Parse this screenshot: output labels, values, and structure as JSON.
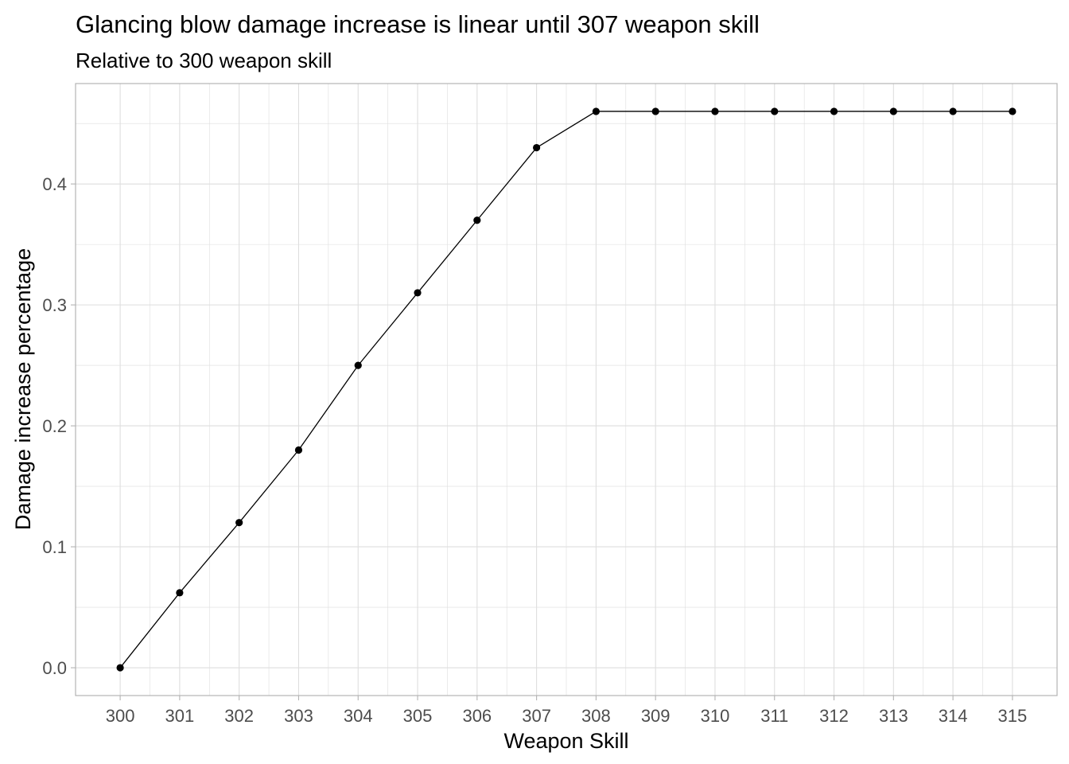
{
  "chart_data": {
    "type": "line",
    "title": "Glancing blow damage increase is linear until 307 weapon skill",
    "subtitle": "Relative to 300 weapon skill",
    "xlabel": "Weapon Skill",
    "ylabel": "Damage increase percentage",
    "x": [
      300,
      301,
      302,
      303,
      304,
      305,
      306,
      307,
      308,
      309,
      310,
      311,
      312,
      313,
      314,
      315
    ],
    "series": [
      {
        "name": "Damage increase",
        "values": [
          0.0,
          0.062,
          0.12,
          0.18,
          0.25,
          0.31,
          0.37,
          0.43,
          0.46,
          0.46,
          0.46,
          0.46,
          0.46,
          0.46,
          0.46,
          0.46
        ]
      }
    ],
    "x_ticks": [
      "300",
      "301",
      "302",
      "303",
      "304",
      "305",
      "306",
      "307",
      "308",
      "309",
      "310",
      "311",
      "312",
      "313",
      "314",
      "315"
    ],
    "y_ticks": [
      "0.0",
      "0.1",
      "0.2",
      "0.3",
      "0.4"
    ],
    "xlim": [
      299.25,
      315.75
    ],
    "ylim": [
      -0.023,
      0.483
    ],
    "grid": true,
    "legend": "none",
    "colors": {
      "line": "#000000",
      "point": "#000000",
      "grid": "#dedede",
      "panel_border": "#b3b3b3",
      "axis_tick": "#b3b3b3"
    }
  }
}
